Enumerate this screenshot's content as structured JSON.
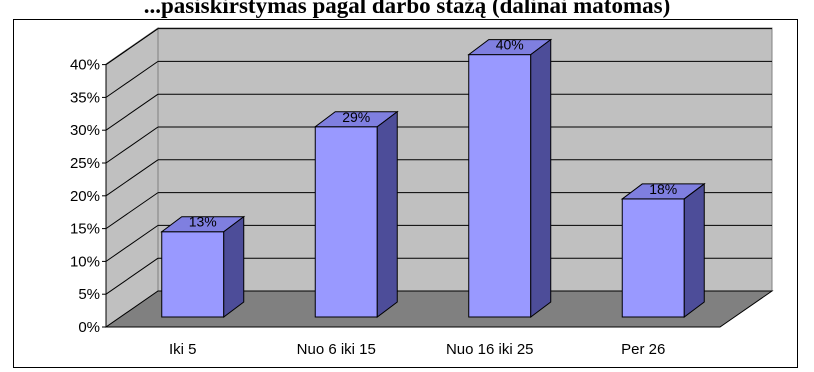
{
  "chart_data": {
    "type": "bar",
    "title": "...pasiskirstymas pagal darbo stažą (dalinai matomas)",
    "categories": [
      "Iki 5",
      "Nuo 6 iki 15",
      "Nuo 16 iki 25",
      "Per 26"
    ],
    "values": [
      13,
      29,
      40,
      18
    ],
    "value_labels": [
      "13%",
      "29%",
      "40%",
      "18%"
    ],
    "y_ticks": [
      "0%",
      "5%",
      "10%",
      "15%",
      "20%",
      "25%",
      "30%",
      "35%",
      "40%"
    ],
    "ylim": [
      0,
      45
    ],
    "xlabel": "",
    "ylabel": "",
    "grid": true,
    "three_d": true,
    "colors": {
      "bar_front": "#9999ff",
      "bar_top": "#7f7fe0",
      "bar_side": "#4d4d99",
      "wall": "#c0c0c0",
      "floor": "#808080",
      "grid": "#000000"
    }
  }
}
